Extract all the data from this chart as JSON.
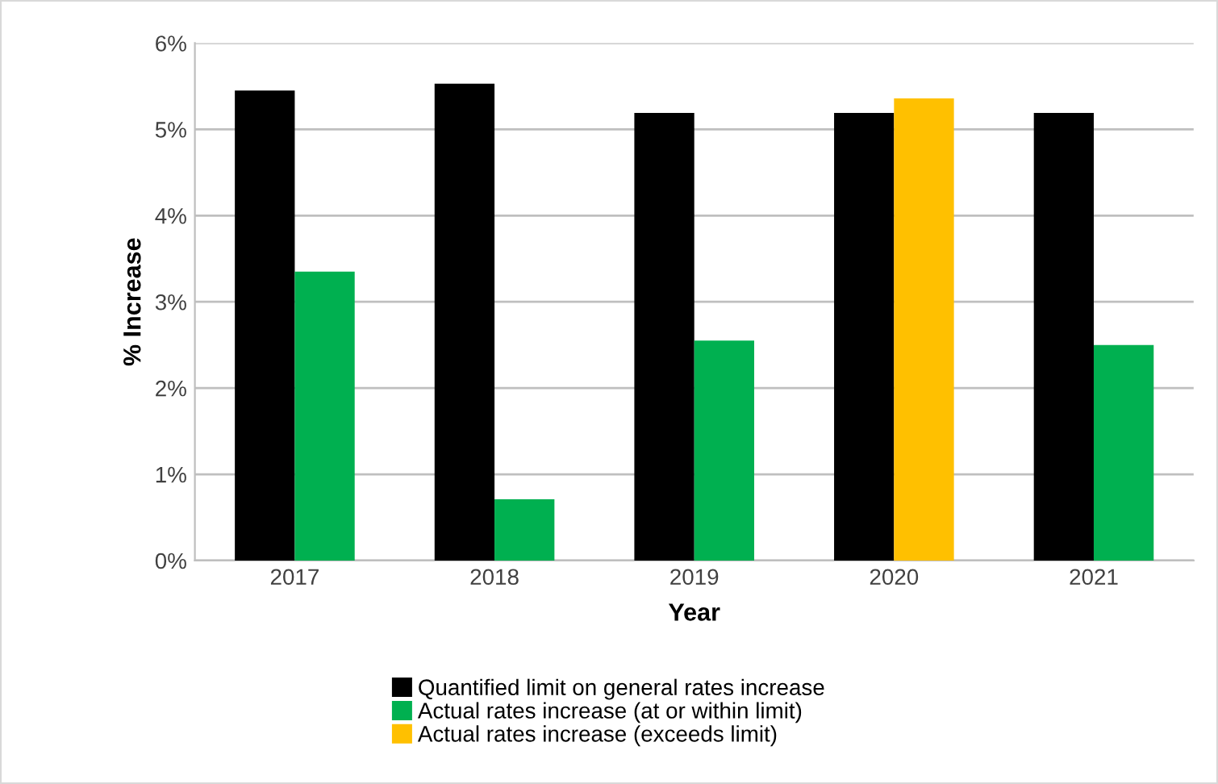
{
  "chart_data": {
    "type": "bar",
    "xlabel": "Year",
    "ylabel": "% Increase",
    "categories": [
      "2017",
      "2018",
      "2019",
      "2020",
      "2021"
    ],
    "series": [
      {
        "name": "Quantified limit on general rates increase",
        "color": "#000000",
        "values": [
          5.45,
          5.53,
          5.19,
          5.19,
          5.19
        ]
      },
      {
        "name": "Actual rates increase (at or within limit)",
        "color": "#00b050",
        "values": [
          3.35,
          0.71,
          2.55,
          null,
          2.5
        ]
      },
      {
        "name": "Actual rates increase (exceeds limit)",
        "color": "#ffc000",
        "values": [
          null,
          null,
          null,
          5.36,
          null
        ]
      }
    ],
    "ylim": [
      0,
      6
    ],
    "yticks": [
      {
        "value": 0,
        "label": "0%"
      },
      {
        "value": 1,
        "label": "1%"
      },
      {
        "value": 2,
        "label": "2%"
      },
      {
        "value": 3,
        "label": "3%"
      },
      {
        "value": 4,
        "label": "4%"
      },
      {
        "value": 5,
        "label": "5%"
      },
      {
        "value": 6,
        "label": "6%"
      }
    ],
    "grid": "y",
    "legend": "bottom"
  }
}
